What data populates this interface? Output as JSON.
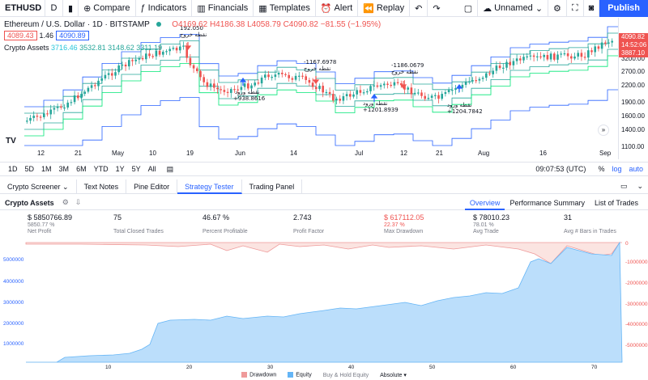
{
  "toolbar": {
    "symbol": "ETHUSD",
    "interval": "D",
    "compare": "Compare",
    "indicators": "Indicators",
    "financials": "Financials",
    "templates": "Templates",
    "alert": "Alert",
    "replay": "Replay",
    "layout_name": "Unnamed",
    "publish": "Publish"
  },
  "legend": {
    "title": "Ethereum / U.S. Dollar · 1D · BITSTAMP",
    "ohlc": "O4169.62 H4186.38 L4058.79 C4090.82 −81.55 (−1.95%)",
    "bid": "4089.43",
    "spread": "1.46",
    "ask": "4090.89",
    "indicator_name": "Crypto Assets",
    "indicator_values": [
      "3716.46",
      "3532.81",
      "3148.62",
      "3311.19"
    ]
  },
  "price_axis": {
    "labels": [
      "3200.00",
      "2700.00",
      "2200.00",
      "1900.00",
      "1600.00",
      "1400.00",
      "1100.00"
    ],
    "current_price": "4090.82",
    "countdown": "14:52:06",
    "second_tag": "3887.10"
  },
  "time_axis": [
    "12",
    "21",
    "May",
    "10",
    "19",
    "Jun",
    "14",
    "Jul",
    "12",
    "21",
    "Aug",
    "16",
    "Sep"
  ],
  "annotations": [
    {
      "text": "192.050",
      "color": "#131722"
    },
    {
      "text": "نقطه خروج",
      "color": "#131722"
    },
    {
      "text": "نقطه ورود",
      "color": "#131722"
    },
    {
      "text": "+938.8616",
      "color": "#131722"
    },
    {
      "text": "-1167.6978",
      "color": "#131722"
    },
    {
      "text": "نقطه خروج",
      "color": "#131722"
    },
    {
      "text": "نقطه ورود",
      "color": "#131722"
    },
    {
      "text": "+1201.8939",
      "color": "#131722"
    },
    {
      "text": "-1186.0679",
      "color": "#131722"
    },
    {
      "text": "نقطه خروج",
      "color": "#131722"
    },
    {
      "text": "نقطه ورود",
      "color": "#131722"
    },
    {
      "text": "+1204.7842",
      "color": "#131722"
    }
  ],
  "timeframes": [
    "1D",
    "5D",
    "1M",
    "3M",
    "6M",
    "YTD",
    "1Y",
    "5Y",
    "All"
  ],
  "clock": "09:07:53 (UTC)",
  "scale_opts": [
    "%",
    "log",
    "auto"
  ],
  "bottom_tabs": [
    "Crypto Screener",
    "Text Notes",
    "Pine Editor",
    "Strategy Tester",
    "Trading Panel"
  ],
  "strategy_name": "Crypto Assets",
  "report_tabs": [
    "Overview",
    "Performance Summary",
    "List of Trades"
  ],
  "stats": [
    {
      "value": "$ 5850766.89",
      "sub": "5850.77 %",
      "label": "Net Profit",
      "red": false
    },
    {
      "value": "75",
      "sub": "",
      "label": "Total Closed Trades",
      "red": false
    },
    {
      "value": "46.67 %",
      "sub": "",
      "label": "Percent Profitable",
      "red": false
    },
    {
      "value": "2.743",
      "sub": "",
      "label": "Profit Factor",
      "red": false
    },
    {
      "value": "$ 617112.05",
      "sub": "22.37 %",
      "label": "Max Drawdown",
      "red": true
    },
    {
      "value": "$ 78010.23",
      "sub": "78.01 %",
      "label": "Avg Trade",
      "red": false
    },
    {
      "value": "31",
      "sub": "",
      "label": "Avg # Bars in Trades",
      "red": false
    }
  ],
  "equity_left_axis": [
    "5000000",
    "4000000",
    "3000000",
    "2000000",
    "1000000"
  ],
  "equity_right_axis": [
    "0",
    "-1000000",
    "-2000000",
    "-3000000",
    "-4000000",
    "-5000000"
  ],
  "equity_x_axis": [
    "10",
    "20",
    "30",
    "40",
    "50",
    "60",
    "70"
  ],
  "footer": {
    "drawdown": "Drawdown",
    "equity": "Equity",
    "buyhold": "Buy & Hold Equity",
    "mode": "Absolute"
  },
  "colors": {
    "accent": "#2962ff",
    "up": "#26a69a",
    "down": "#ef5350",
    "equity_fill": "#bbdefb",
    "drawdown_fill": "#fbe4e1"
  }
}
